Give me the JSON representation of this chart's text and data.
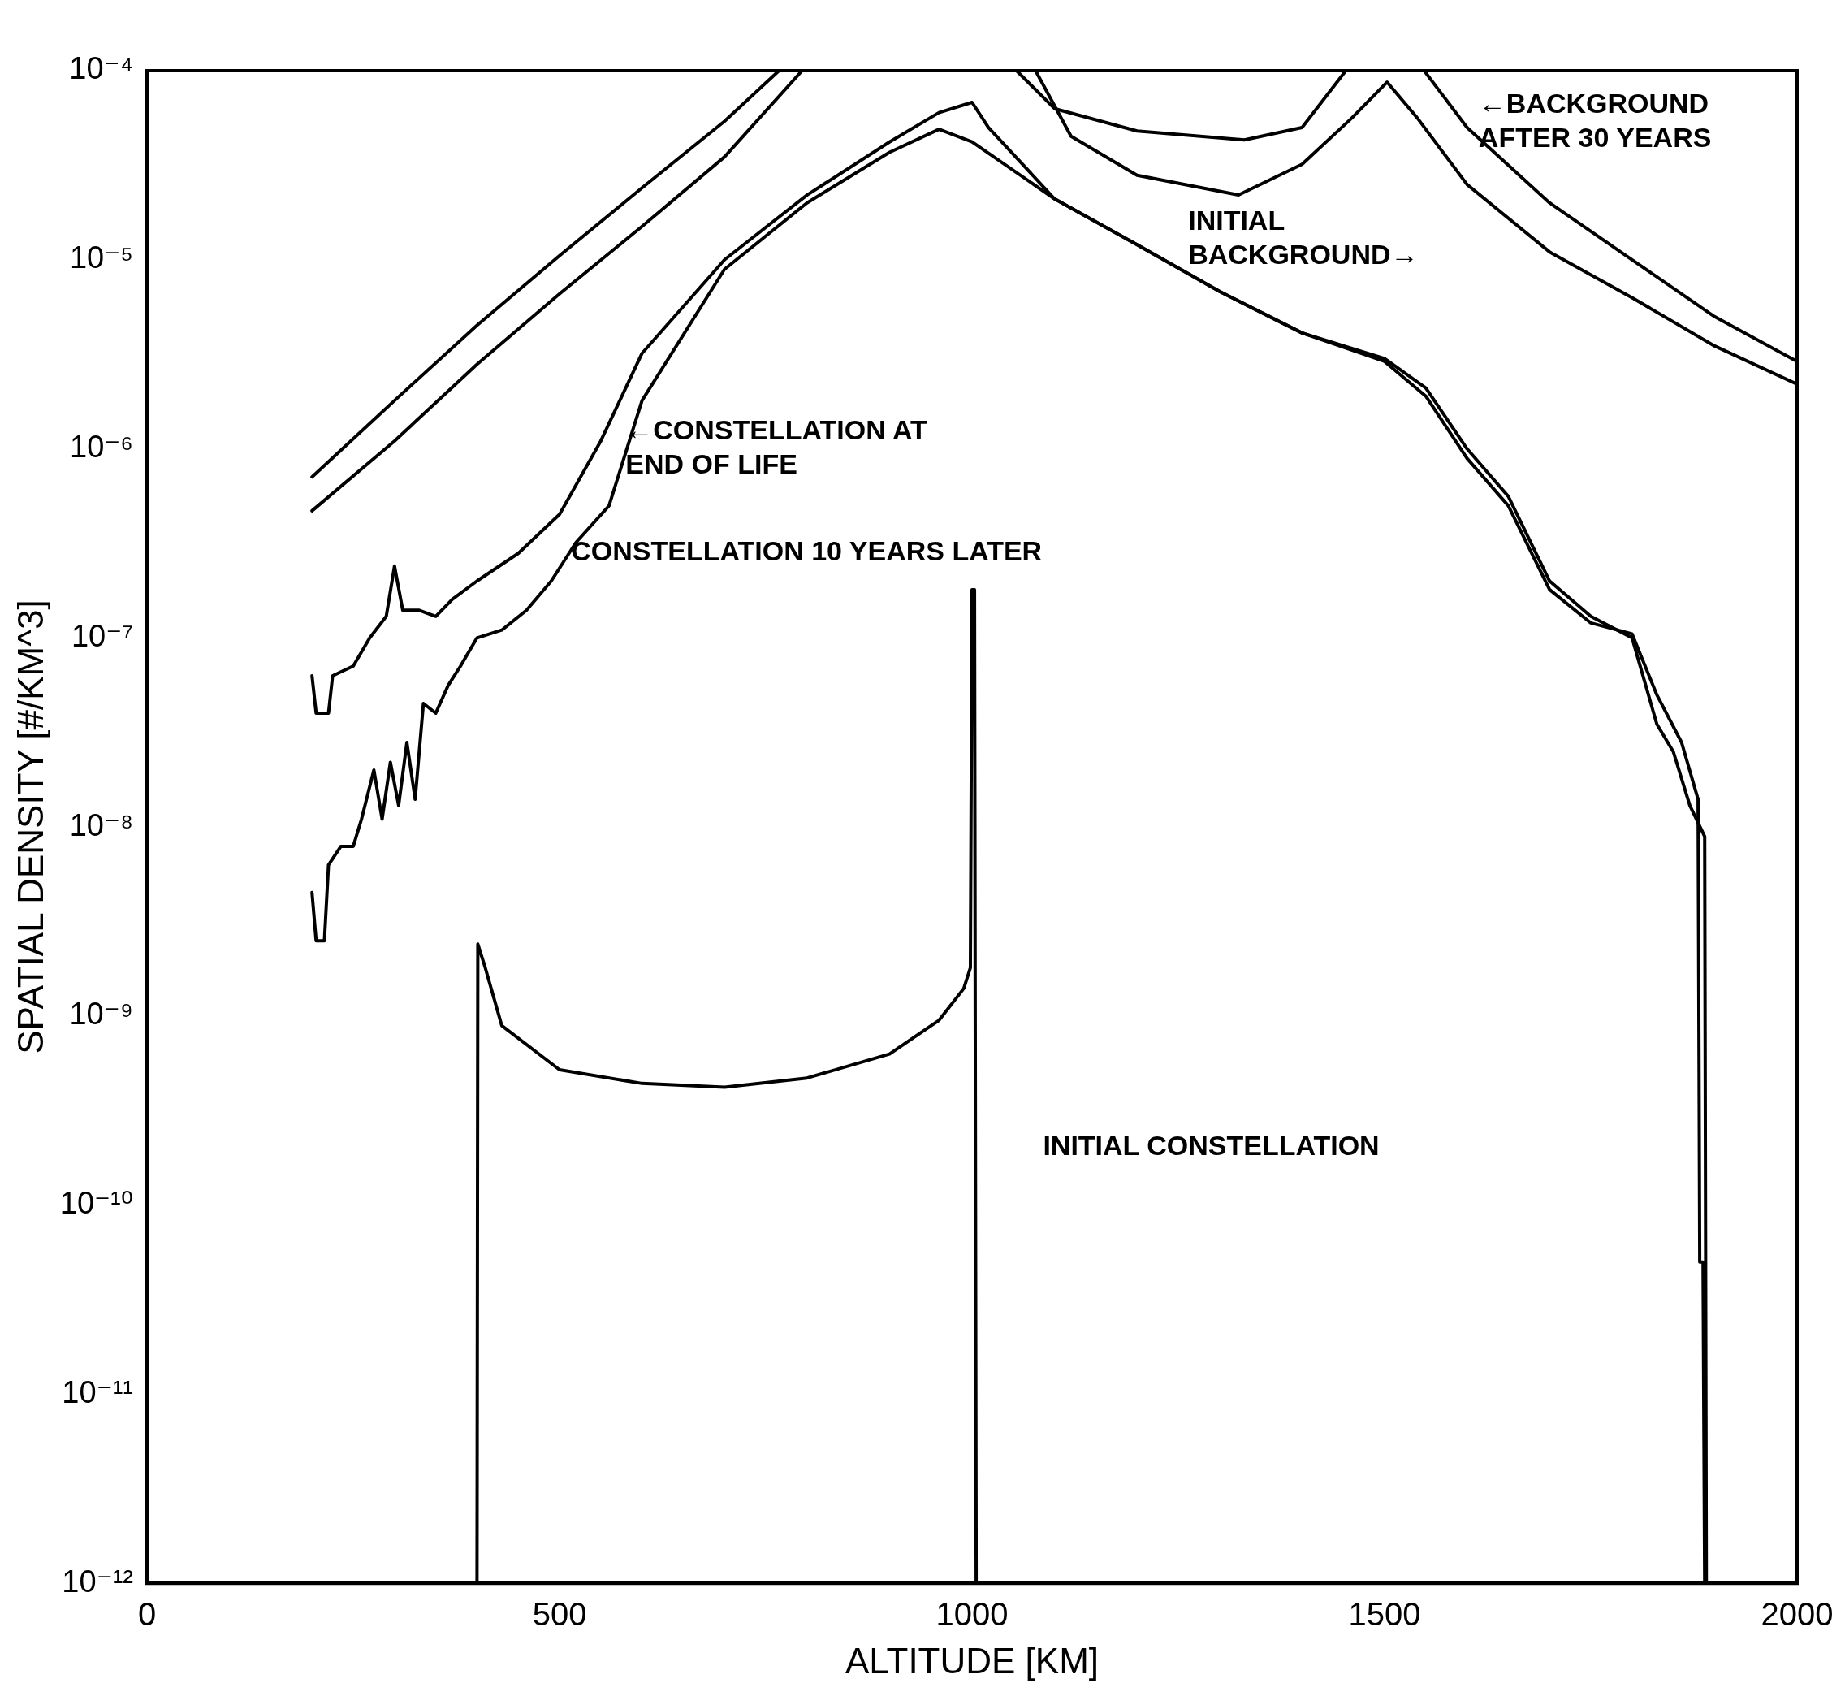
{
  "chart_data": {
    "type": "line",
    "xlabel": "ALTITUDE [KM]",
    "ylabel": "SPATIAL DENSITY [#/KM^3]",
    "xlim": [
      0,
      2000
    ],
    "xticks": [
      0,
      500,
      1000,
      1500,
      2000
    ],
    "ylim": [
      1e-12,
      0.0001
    ],
    "log": "y",
    "yticks": [
      {
        "value": 1e-12,
        "label": "10⁻¹²"
      },
      {
        "value": 1e-11,
        "label": "10⁻¹¹"
      },
      {
        "value": 1e-10,
        "label": "10⁻¹⁰"
      },
      {
        "value": 1e-09,
        "label": "10⁻⁹"
      },
      {
        "value": 1e-08,
        "label": "10⁻⁸"
      },
      {
        "value": 1e-07,
        "label": "10⁻⁷"
      },
      {
        "value": 1e-06,
        "label": "10⁻⁶"
      },
      {
        "value": 1e-05,
        "label": "10⁻⁵"
      },
      {
        "value": 0.0001,
        "label": "10⁻⁴"
      }
    ],
    "grid": false,
    "legend": false,
    "marker": "none",
    "line_style": "solid",
    "series": [
      {
        "color": "#000000",
        "x": [
          200,
          300,
          400,
          500,
          600,
          700,
          766,
          900,
          1054,
          1100,
          1200,
          1330,
          1400,
          1453,
          1500,
          1548,
          1600,
          1700,
          1800,
          1900,
          2000
        ],
        "values": [
          7.1e-07,
          1.8e-06,
          4.5e-06,
          1.05e-05,
          2.4e-05,
          5.4e-05,
          0.0001,
          null,
          0.0001,
          6.3e-05,
          4.8e-05,
          4.3e-05,
          5e-05,
          0.0001,
          null,
          0.0001,
          5e-05,
          2e-05,
          1e-05,
          5e-06,
          2.9e-06
        ]
      },
      {
        "color": "#000000",
        "x": [
          200,
          300,
          400,
          500,
          600,
          700,
          794,
          900,
          1077,
          1120,
          1200,
          1323,
          1400,
          1460,
          1503,
          1540,
          1600,
          1700,
          1800,
          1900,
          2000
        ],
        "values": [
          4.7e-07,
          1.1e-06,
          2.8e-06,
          6.6e-06,
          1.5e-05,
          3.5e-05,
          0.0001,
          null,
          0.0001,
          4.5e-05,
          2.8e-05,
          2.2e-05,
          3.2e-05,
          5.6e-05,
          8.7e-05,
          5.6e-05,
          2.5e-05,
          1.1e-05,
          6.3e-06,
          3.5e-06,
          2.2e-06
        ]
      },
      {
        "color": "#000000",
        "x": [
          200,
          205,
          220,
          225,
          250,
          270,
          290,
          300,
          310,
          330,
          350,
          370,
          400,
          450,
          500,
          550,
          600,
          700,
          800,
          900,
          960,
          1000,
          1020,
          1100,
          1200,
          1300,
          1400,
          1500,
          1550,
          1600,
          1650,
          1700,
          1750,
          1800,
          1830,
          1860,
          1880,
          1882,
          1886,
          1888
        ],
        "values": [
          6.3e-08,
          4e-08,
          4e-08,
          6.3e-08,
          7.1e-08,
          1e-07,
          1.3e-07,
          2.4e-07,
          1.4e-07,
          1.4e-07,
          1.3e-07,
          1.6e-07,
          2e-07,
          2.8e-07,
          4.5e-07,
          1.1e-06,
          3.2e-06,
          1e-05,
          2.2e-05,
          4.2e-05,
          6e-05,
          6.8e-05,
          5e-05,
          2.1e-05,
          1.2e-05,
          6.8e-06,
          4.1e-06,
          2.9e-06,
          1.9e-06,
          8.9e-07,
          5e-07,
          1.8e-07,
          1.2e-07,
          1.05e-07,
          5e-08,
          2.8e-08,
          1.4e-08,
          5e-11,
          5e-11,
          1e-12
        ]
      },
      {
        "color": "#000000",
        "x": [
          200,
          205,
          215,
          220,
          235,
          250,
          260,
          275,
          285,
          295,
          305,
          315,
          325,
          335,
          350,
          365,
          380,
          400,
          430,
          460,
          490,
          520,
          560,
          600,
          700,
          800,
          900,
          960,
          1000,
          1100,
          1200,
          1300,
          1400,
          1500,
          1550,
          1600,
          1650,
          1700,
          1750,
          1800,
          1830,
          1850,
          1870,
          1888,
          1890
        ],
        "values": [
          4.5e-09,
          2.5e-09,
          2.5e-09,
          6.3e-09,
          7.9e-09,
          7.9e-09,
          1.1e-08,
          2e-08,
          1.1e-08,
          2.2e-08,
          1.3e-08,
          2.8e-08,
          1.4e-08,
          4.5e-08,
          4e-08,
          5.6e-08,
          7.1e-08,
          1e-07,
          1.1e-07,
          1.4e-07,
          2e-07,
          3.2e-07,
          5e-07,
          1.8e-06,
          8.9e-06,
          2e-05,
          3.7e-05,
          4.9e-05,
          4.2e-05,
          2.1e-05,
          1.2e-05,
          6.8e-06,
          4.1e-06,
          3e-06,
          2.1e-06,
          1e-06,
          5.6e-07,
          2e-07,
          1.3e-07,
          1e-07,
          3.5e-08,
          2.5e-08,
          1.3e-08,
          8.9e-09,
          1e-12
        ]
      },
      {
        "color": "#000000",
        "x": [
          400,
          401,
          410,
          430,
          500,
          600,
          700,
          800,
          900,
          960,
          990,
          998,
          1000,
          1003,
          1005
        ],
        "values": [
          1e-12,
          2.4e-09,
          1.8e-09,
          8.9e-10,
          5.2e-10,
          4.4e-10,
          4.2e-10,
          4.7e-10,
          6.3e-10,
          9.5e-10,
          1.4e-09,
          1.8e-09,
          1.8e-07,
          1.8e-07,
          1e-12
        ]
      }
    ],
    "annotations": [
      "←BACKGROUND\nAFTER 30 YEARS",
      "INITIAL\nBACKGROUND→",
      "←CONSTELLATION AT\nEND OF LIFE",
      "CONSTELLATION 10 YEARS LATER",
      "INITIAL CONSTELLATION"
    ]
  }
}
